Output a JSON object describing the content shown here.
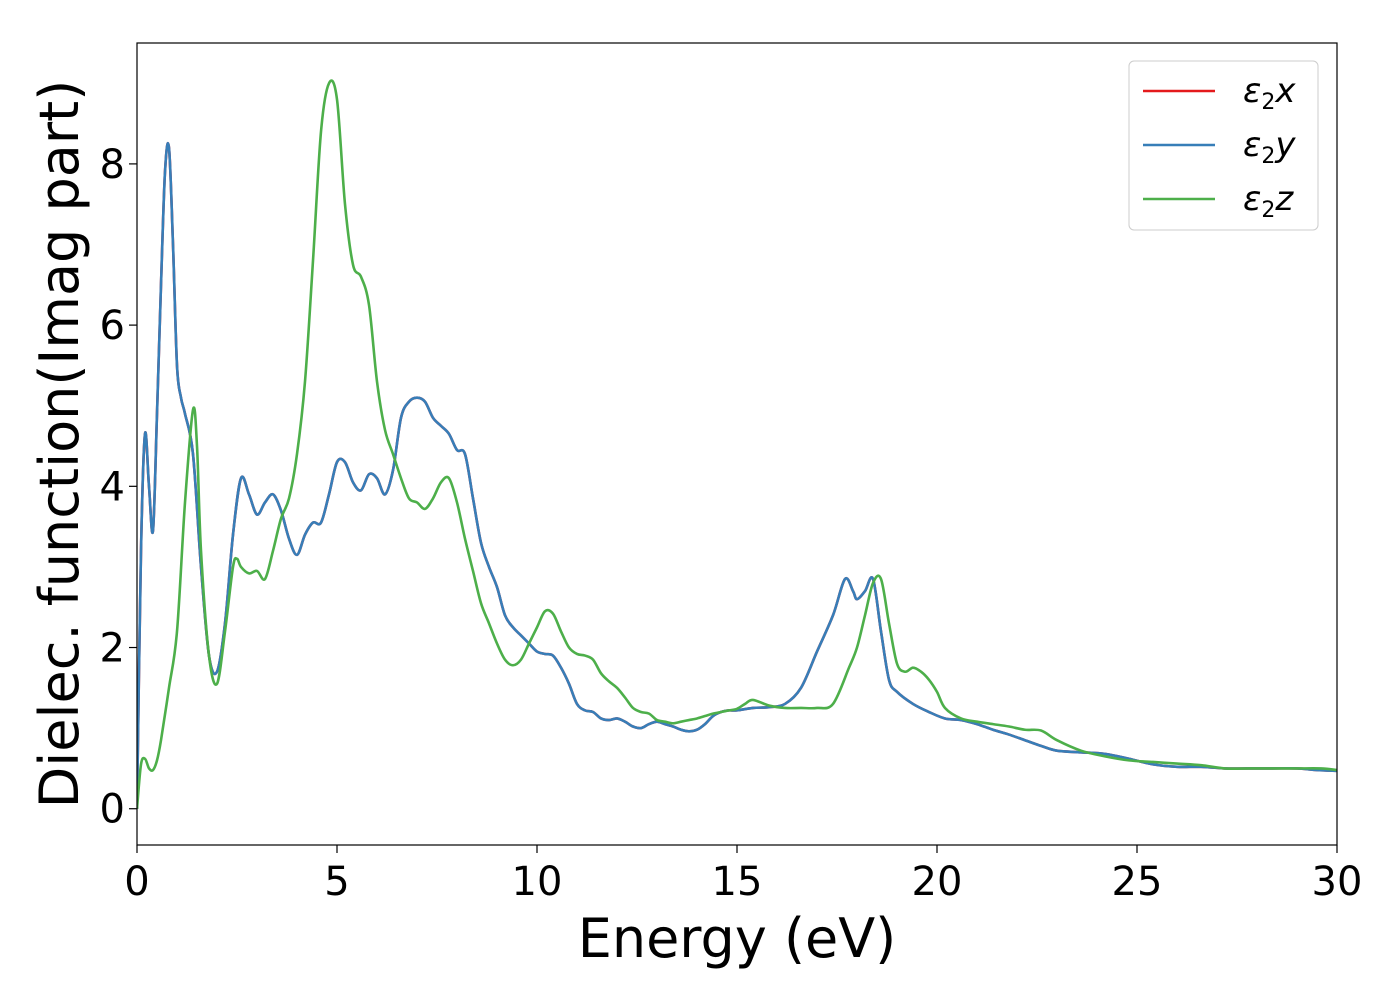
{
  "chart_data": {
    "type": "line",
    "title": "",
    "xlabel": "Energy (eV)",
    "ylabel": "Dielec. function(Imag part)",
    "xlim": [
      0,
      30
    ],
    "ylim": [
      -0.45,
      9.5
    ],
    "xticks": [
      0,
      5,
      10,
      15,
      20,
      25,
      30
    ],
    "xtick_labels": [
      "0",
      "5",
      "10",
      "15",
      "20",
      "25",
      "30"
    ],
    "yticks": [
      0,
      2,
      4,
      6,
      8
    ],
    "ytick_labels": [
      "0",
      "2",
      "4",
      "6",
      "8"
    ],
    "grid": false,
    "legend_position": "top-right",
    "series": [
      {
        "name": "ε2x",
        "legend": {
          "base": "ε",
          "sub": "2",
          "axis": "x"
        },
        "color": "#e41a1c",
        "x": [
          0,
          0.1,
          0.2,
          0.3,
          0.4,
          0.5,
          0.6,
          0.7,
          0.8,
          0.9,
          1.0,
          1.1,
          1.2,
          1.4,
          1.6,
          1.8,
          2.0,
          2.2,
          2.4,
          2.6,
          2.8,
          3.0,
          3.2,
          3.4,
          3.6,
          3.8,
          4.0,
          4.2,
          4.4,
          4.6,
          4.8,
          5.0,
          5.2,
          5.4,
          5.6,
          5.8,
          6.0,
          6.2,
          6.4,
          6.6,
          6.8,
          7.0,
          7.2,
          7.4,
          7.6,
          7.8,
          8.0,
          8.2,
          8.4,
          8.6,
          8.8,
          9.0,
          9.2,
          9.4,
          9.6,
          9.8,
          10.0,
          10.2,
          10.4,
          10.6,
          10.8,
          11.0,
          11.2,
          11.4,
          11.6,
          11.8,
          12.0,
          12.2,
          12.4,
          12.6,
          12.8,
          13.0,
          13.2,
          13.4,
          13.6,
          13.8,
          14.0,
          14.2,
          14.4,
          14.6,
          14.8,
          15.0,
          15.4,
          15.8,
          16.2,
          16.6,
          17.0,
          17.4,
          17.7,
          17.9,
          18.0,
          18.2,
          18.4,
          18.6,
          18.8,
          19.0,
          19.4,
          19.8,
          20.2,
          20.6,
          21.0,
          21.4,
          21.8,
          22.2,
          22.6,
          23.0,
          23.6,
          24.2,
          24.8,
          25.4,
          26.0,
          26.6,
          27.2,
          27.8,
          28.4,
          29.0,
          29.5,
          30.0
        ],
        "y": [
          0.0,
          3.2,
          4.65,
          4.0,
          3.45,
          4.9,
          6.5,
          7.9,
          8.2,
          7.0,
          5.5,
          5.1,
          4.9,
          4.4,
          3.0,
          1.9,
          1.7,
          2.3,
          3.4,
          4.1,
          3.9,
          3.65,
          3.8,
          3.9,
          3.7,
          3.35,
          3.15,
          3.4,
          3.55,
          3.55,
          3.9,
          4.3,
          4.3,
          4.05,
          3.95,
          4.15,
          4.1,
          3.9,
          4.2,
          4.85,
          5.05,
          5.1,
          5.05,
          4.85,
          4.75,
          4.65,
          4.45,
          4.4,
          3.85,
          3.3,
          3.0,
          2.75,
          2.4,
          2.25,
          2.15,
          2.05,
          1.95,
          1.92,
          1.9,
          1.75,
          1.55,
          1.3,
          1.22,
          1.2,
          1.12,
          1.1,
          1.12,
          1.08,
          1.02,
          1.0,
          1.05,
          1.08,
          1.05,
          1.02,
          0.98,
          0.96,
          0.98,
          1.05,
          1.15,
          1.2,
          1.22,
          1.22,
          1.25,
          1.26,
          1.3,
          1.5,
          1.95,
          2.4,
          2.85,
          2.7,
          2.6,
          2.7,
          2.85,
          2.2,
          1.6,
          1.45,
          1.3,
          1.2,
          1.12,
          1.1,
          1.05,
          0.98,
          0.92,
          0.85,
          0.78,
          0.72,
          0.7,
          0.68,
          0.62,
          0.55,
          0.52,
          0.52,
          0.5,
          0.5,
          0.5,
          0.5,
          0.48,
          0.47
        ]
      },
      {
        "name": "ε2y",
        "legend": {
          "base": "ε",
          "sub": "2",
          "axis": "y"
        },
        "color": "#377eb8",
        "x": [
          0,
          0.1,
          0.2,
          0.3,
          0.4,
          0.5,
          0.6,
          0.7,
          0.8,
          0.9,
          1.0,
          1.1,
          1.2,
          1.4,
          1.6,
          1.8,
          2.0,
          2.2,
          2.4,
          2.6,
          2.8,
          3.0,
          3.2,
          3.4,
          3.6,
          3.8,
          4.0,
          4.2,
          4.4,
          4.6,
          4.8,
          5.0,
          5.2,
          5.4,
          5.6,
          5.8,
          6.0,
          6.2,
          6.4,
          6.6,
          6.8,
          7.0,
          7.2,
          7.4,
          7.6,
          7.8,
          8.0,
          8.2,
          8.4,
          8.6,
          8.8,
          9.0,
          9.2,
          9.4,
          9.6,
          9.8,
          10.0,
          10.2,
          10.4,
          10.6,
          10.8,
          11.0,
          11.2,
          11.4,
          11.6,
          11.8,
          12.0,
          12.2,
          12.4,
          12.6,
          12.8,
          13.0,
          13.2,
          13.4,
          13.6,
          13.8,
          14.0,
          14.2,
          14.4,
          14.6,
          14.8,
          15.0,
          15.4,
          15.8,
          16.2,
          16.6,
          17.0,
          17.4,
          17.7,
          17.9,
          18.0,
          18.2,
          18.4,
          18.6,
          18.8,
          19.0,
          19.4,
          19.8,
          20.2,
          20.6,
          21.0,
          21.4,
          21.8,
          22.2,
          22.6,
          23.0,
          23.6,
          24.2,
          24.8,
          25.4,
          26.0,
          26.6,
          27.2,
          27.8,
          28.4,
          29.0,
          29.5,
          30.0
        ],
        "y": [
          0.0,
          3.2,
          4.65,
          4.0,
          3.45,
          4.9,
          6.5,
          7.9,
          8.2,
          7.0,
          5.5,
          5.1,
          4.9,
          4.4,
          3.0,
          1.9,
          1.7,
          2.3,
          3.4,
          4.1,
          3.9,
          3.65,
          3.8,
          3.9,
          3.7,
          3.35,
          3.15,
          3.4,
          3.55,
          3.55,
          3.9,
          4.3,
          4.3,
          4.05,
          3.95,
          4.15,
          4.1,
          3.9,
          4.2,
          4.85,
          5.05,
          5.1,
          5.05,
          4.85,
          4.75,
          4.65,
          4.45,
          4.4,
          3.85,
          3.3,
          3.0,
          2.75,
          2.4,
          2.25,
          2.15,
          2.05,
          1.95,
          1.92,
          1.9,
          1.75,
          1.55,
          1.3,
          1.22,
          1.2,
          1.12,
          1.1,
          1.12,
          1.08,
          1.02,
          1.0,
          1.05,
          1.08,
          1.05,
          1.02,
          0.98,
          0.96,
          0.98,
          1.05,
          1.15,
          1.2,
          1.22,
          1.22,
          1.25,
          1.26,
          1.3,
          1.5,
          1.95,
          2.4,
          2.85,
          2.7,
          2.6,
          2.7,
          2.85,
          2.2,
          1.6,
          1.45,
          1.3,
          1.2,
          1.12,
          1.1,
          1.05,
          0.98,
          0.92,
          0.85,
          0.78,
          0.72,
          0.7,
          0.68,
          0.62,
          0.55,
          0.52,
          0.52,
          0.5,
          0.5,
          0.5,
          0.5,
          0.48,
          0.47
        ]
      },
      {
        "name": "ε2z",
        "legend": {
          "base": "ε",
          "sub": "2",
          "axis": "z"
        },
        "color": "#4daf4a",
        "x": [
          0,
          0.1,
          0.2,
          0.3,
          0.4,
          0.5,
          0.6,
          0.8,
          1.0,
          1.2,
          1.4,
          1.5,
          1.6,
          1.8,
          2.0,
          2.2,
          2.4,
          2.5,
          2.6,
          2.8,
          3.0,
          3.2,
          3.4,
          3.6,
          3.8,
          4.0,
          4.2,
          4.4,
          4.6,
          4.8,
          5.0,
          5.2,
          5.4,
          5.6,
          5.8,
          6.0,
          6.2,
          6.4,
          6.6,
          6.8,
          7.0,
          7.2,
          7.4,
          7.6,
          7.8,
          8.0,
          8.2,
          8.4,
          8.6,
          8.8,
          9.0,
          9.2,
          9.4,
          9.6,
          9.8,
          10.0,
          10.2,
          10.4,
          10.6,
          10.8,
          11.0,
          11.2,
          11.4,
          11.6,
          11.8,
          12.0,
          12.2,
          12.4,
          12.6,
          12.8,
          13.0,
          13.2,
          13.4,
          13.6,
          13.8,
          14.0,
          14.2,
          14.4,
          14.6,
          14.8,
          15.0,
          15.2,
          15.4,
          15.8,
          16.2,
          16.6,
          17.0,
          17.4,
          17.8,
          18.0,
          18.2,
          18.4,
          18.6,
          18.8,
          19.0,
          19.2,
          19.4,
          19.6,
          19.8,
          20.0,
          20.2,
          20.6,
          21.0,
          21.4,
          21.8,
          22.2,
          22.6,
          23.0,
          23.6,
          24.2,
          24.8,
          25.4,
          26.0,
          26.6,
          27.2,
          27.8,
          28.4,
          29.0,
          29.6,
          30.0
        ],
        "y": [
          0.0,
          0.55,
          0.62,
          0.5,
          0.48,
          0.6,
          0.85,
          1.5,
          2.2,
          3.8,
          4.95,
          4.5,
          3.2,
          1.9,
          1.55,
          2.2,
          3.0,
          3.1,
          3.0,
          2.92,
          2.95,
          2.85,
          3.2,
          3.6,
          3.85,
          4.4,
          5.3,
          6.8,
          8.4,
          9.0,
          8.8,
          7.5,
          6.75,
          6.6,
          6.25,
          5.3,
          4.7,
          4.4,
          4.1,
          3.85,
          3.8,
          3.72,
          3.85,
          4.05,
          4.1,
          3.8,
          3.35,
          2.95,
          2.55,
          2.3,
          2.05,
          1.85,
          1.78,
          1.85,
          2.05,
          2.25,
          2.45,
          2.42,
          2.2,
          2.0,
          1.92,
          1.9,
          1.85,
          1.68,
          1.58,
          1.5,
          1.38,
          1.25,
          1.2,
          1.18,
          1.1,
          1.08,
          1.06,
          1.08,
          1.1,
          1.12,
          1.15,
          1.18,
          1.2,
          1.22,
          1.24,
          1.3,
          1.35,
          1.28,
          1.25,
          1.25,
          1.25,
          1.3,
          1.75,
          2.0,
          2.4,
          2.8,
          2.85,
          2.3,
          1.8,
          1.7,
          1.75,
          1.7,
          1.6,
          1.45,
          1.25,
          1.12,
          1.08,
          1.05,
          1.02,
          0.98,
          0.97,
          0.85,
          0.72,
          0.65,
          0.6,
          0.58,
          0.56,
          0.54,
          0.5,
          0.5,
          0.5,
          0.5,
          0.5,
          0.48
        ]
      }
    ]
  }
}
